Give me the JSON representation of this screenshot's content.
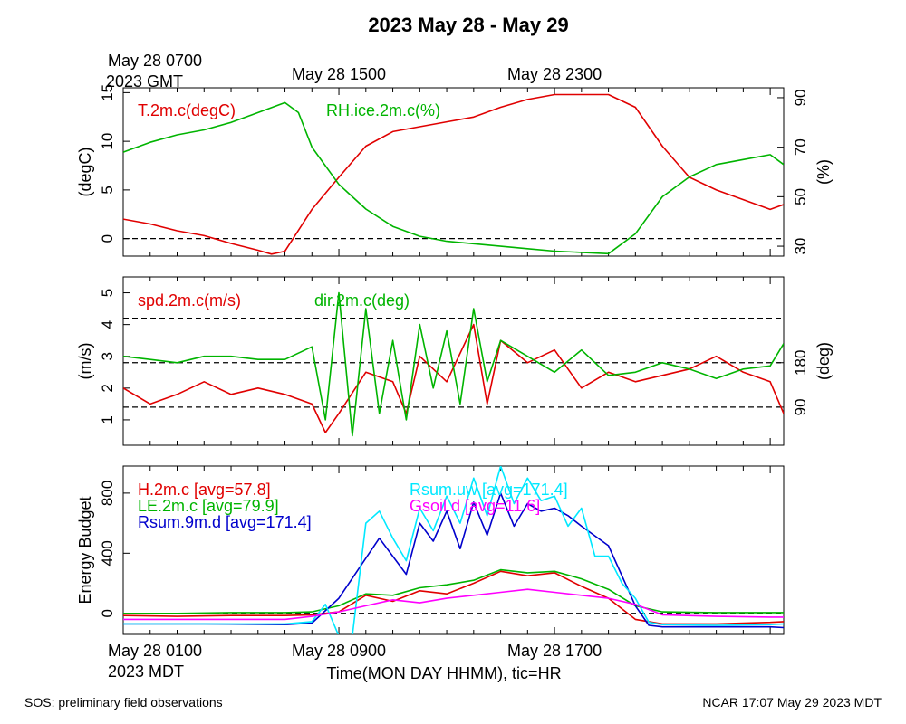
{
  "title": "2023 May 28 - May 29",
  "top_axis": {
    "labels": [
      "May 28 0700\n2023 GMT",
      "May 28 1500",
      "May 28 2300"
    ],
    "hours": [
      0,
      8,
      16
    ]
  },
  "bottom_axis": {
    "labels": [
      "May 28 0100\n2023 MDT",
      "May 28 0900",
      "May 28 1700"
    ],
    "hours": [
      0,
      8,
      16
    ],
    "xlabel": "Time(MON DAY HHMM), tic=HR",
    "xlim_hours": [
      0,
      24.5
    ]
  },
  "footer": {
    "left": "SOS: preliminary field observations",
    "right": "NCAR 17:07 May 29 2023 MDT"
  },
  "colors": {
    "red": "#e00000",
    "green": "#00b400",
    "blue": "#0000cc",
    "cyan": "#00e8ff",
    "magenta": "#ff00ff"
  },
  "chart_data": [
    {
      "type": "line",
      "name": "temperature-humidity",
      "ylabel": "(degC)",
      "ylabel_right": "(%)",
      "ylim": [
        -1.8,
        15.5
      ],
      "yticks": [
        "0",
        "5",
        "10",
        "15"
      ],
      "ylim_right": [
        26,
        94
      ],
      "yticks_right": [
        "30",
        "50",
        "70",
        "90"
      ],
      "ref_lines": [
        0
      ],
      "legend": [
        "T.2m.c(degC)",
        "RH.ice.2m.c(%)"
      ],
      "series": [
        {
          "name": "T.2m.c(degC)",
          "color": "red",
          "axis": "left",
          "x": [
            0,
            1,
            2,
            3,
            4,
            5,
            5.5,
            6,
            7,
            8,
            9,
            10,
            11,
            12,
            13,
            14,
            15,
            16,
            17,
            18,
            19,
            20,
            21,
            22,
            23,
            24,
            24.5
          ],
          "y": [
            2,
            1.5,
            0.8,
            0.3,
            -0.5,
            -1.2,
            -1.6,
            -1.3,
            3,
            6.3,
            9.5,
            11,
            11.5,
            12,
            12.5,
            13.5,
            14.3,
            14.8,
            14.8,
            14.8,
            13.5,
            9.5,
            6.3,
            5,
            4,
            3,
            3.5
          ]
        },
        {
          "name": "RH.ice.2m.c(%)",
          "color": "green",
          "axis": "right",
          "x": [
            0,
            1,
            2,
            3,
            4,
            5,
            6,
            6.5,
            7,
            8,
            9,
            10,
            11,
            12,
            13,
            14,
            15,
            16,
            17,
            18,
            19,
            20,
            21,
            22,
            23,
            24,
            24.5
          ],
          "y": [
            68,
            72,
            75,
            77,
            80,
            84,
            88,
            84,
            70,
            55,
            45,
            38,
            34,
            32,
            31,
            30,
            29,
            28,
            27.5,
            27,
            35,
            50,
            58,
            63,
            65,
            67,
            63
          ]
        }
      ]
    },
    {
      "type": "line",
      "name": "wind",
      "ylabel": "(m/s)",
      "ylabel_right": "(deg)",
      "ylim": [
        0.2,
        5.5
      ],
      "yticks": [
        "1",
        "2",
        "3",
        "4",
        "5"
      ],
      "yticks_right": [
        "90",
        "180"
      ],
      "right_tick_values_ms": [
        1.4,
        2.8
      ],
      "ref_lines": [
        1.4,
        2.8,
        4.2
      ],
      "legend": [
        "spd.2m.c(m/s)",
        "dir.2m.c(deg)"
      ],
      "series": [
        {
          "name": "spd.2m.c(m/s)",
          "color": "red",
          "axis": "left",
          "x": [
            0,
            1,
            2,
            3,
            4,
            5,
            6,
            7,
            7.5,
            8,
            9,
            10,
            10.5,
            11,
            12,
            13,
            13.5,
            14,
            15,
            16,
            17,
            18,
            19,
            20,
            21,
            22,
            23,
            24,
            24.5
          ],
          "y": [
            2,
            1.5,
            1.8,
            2.2,
            1.8,
            2,
            1.8,
            1.5,
            0.6,
            1.2,
            2.5,
            2.2,
            1.2,
            3,
            2.2,
            4,
            1.5,
            3.5,
            2.8,
            3.2,
            2,
            2.5,
            2.2,
            2.4,
            2.6,
            3,
            2.5,
            2.2,
            1.2
          ]
        },
        {
          "name": "dir.2m.c(deg)",
          "color": "green",
          "axis": "right",
          "x": [
            0,
            1,
            2,
            3,
            4,
            5,
            6,
            7,
            7.5,
            8,
            8.5,
            9,
            9.5,
            10,
            10.5,
            11,
            11.5,
            12,
            12.5,
            13,
            13.5,
            14,
            15,
            16,
            17,
            18,
            19,
            20,
            21,
            22,
            23,
            24,
            24.5
          ],
          "y": [
            3,
            2.9,
            2.8,
            3,
            3,
            2.9,
            2.9,
            3.3,
            1,
            5,
            0.5,
            4.5,
            1.2,
            3.5,
            1,
            4,
            2,
            3.8,
            1.5,
            4.5,
            2.2,
            3.5,
            3,
            2.5,
            3.2,
            2.4,
            2.5,
            2.8,
            2.6,
            2.3,
            2.6,
            2.7,
            3.4
          ]
        }
      ]
    },
    {
      "type": "line",
      "name": "energy-budget",
      "ylabel": "Energy Budget",
      "ylim": [
        -140,
        980
      ],
      "yticks": [
        "0",
        "400",
        "800"
      ],
      "ytick_values": [
        0,
        400,
        800
      ],
      "ref_lines": [
        0
      ],
      "legend": [
        "H.2m.c [avg=57.8]",
        "LE.2m.c [avg=79.9]",
        "Rsum.9m.d [avg=171.4]",
        "Rsum.uw [avg=171.4]",
        "Gsoil.d [avg=11.6]"
      ],
      "series": [
        {
          "name": "H.2m.c [avg=57.8]",
          "color": "red",
          "x": [
            0,
            2,
            4,
            6,
            7,
            8,
            9,
            10,
            11,
            12,
            13,
            14,
            15,
            16,
            17,
            18,
            19,
            20,
            22,
            24,
            24.5
          ],
          "y": [
            -15,
            -20,
            -15,
            -15,
            -10,
            10,
            120,
            80,
            150,
            130,
            200,
            280,
            250,
            270,
            180,
            100,
            -40,
            -70,
            -70,
            -60,
            -55
          ]
        },
        {
          "name": "LE.2m.c [avg=79.9]",
          "color": "green",
          "x": [
            0,
            2,
            4,
            6,
            7,
            8,
            9,
            10,
            11,
            12,
            13,
            14,
            15,
            16,
            17,
            18,
            19,
            20,
            22,
            24,
            24.5
          ],
          "y": [
            0,
            0,
            5,
            5,
            10,
            50,
            130,
            120,
            170,
            190,
            220,
            290,
            270,
            280,
            230,
            160,
            50,
            10,
            5,
            5,
            5
          ]
        },
        {
          "name": "Rsum.9m.d [avg=171.4]",
          "color": "blue",
          "x": [
            0,
            3,
            6,
            7,
            8,
            9.5,
            10.5,
            11,
            11.5,
            12,
            12.5,
            13,
            13.5,
            14,
            14.5,
            15,
            15.5,
            16,
            16.5,
            17,
            18,
            19,
            19.5,
            20,
            22,
            24,
            24.5
          ],
          "y": [
            -70,
            -70,
            -75,
            -65,
            100,
            500,
            260,
            600,
            480,
            680,
            430,
            740,
            520,
            800,
            580,
            730,
            680,
            700,
            650,
            580,
            450,
            50,
            -80,
            -90,
            -90,
            -90,
            -95
          ]
        },
        {
          "name": "Rsum.uw [avg=171.4]",
          "color": "cyan",
          "x": [
            0,
            3,
            6,
            7,
            7.5,
            8,
            8.5,
            9,
            9.5,
            10,
            10.5,
            11,
            11.5,
            12,
            12.5,
            13,
            13.5,
            14,
            14.5,
            15,
            15.5,
            16,
            16.5,
            17,
            17.5,
            18,
            18.5,
            19,
            19.5,
            20,
            22,
            24,
            24.5
          ],
          "y": [
            -70,
            -70,
            -70,
            -55,
            60,
            -150,
            -150,
            600,
            680,
            500,
            350,
            700,
            550,
            780,
            600,
            900,
            650,
            980,
            730,
            900,
            750,
            780,
            580,
            700,
            380,
            380,
            200,
            100,
            -60,
            -75,
            -80,
            -75,
            -70
          ]
        },
        {
          "name": "Gsoil.d [avg=11.6]",
          "color": "magenta",
          "x": [
            0,
            3,
            6,
            7,
            8,
            9,
            10,
            11,
            12,
            13,
            14,
            15,
            16,
            17,
            18,
            19,
            20,
            22,
            24,
            24.5
          ],
          "y": [
            -40,
            -40,
            -40,
            -20,
            10,
            50,
            90,
            70,
            100,
            120,
            140,
            160,
            140,
            120,
            100,
            60,
            -10,
            -20,
            -25,
            -25
          ]
        }
      ]
    }
  ]
}
